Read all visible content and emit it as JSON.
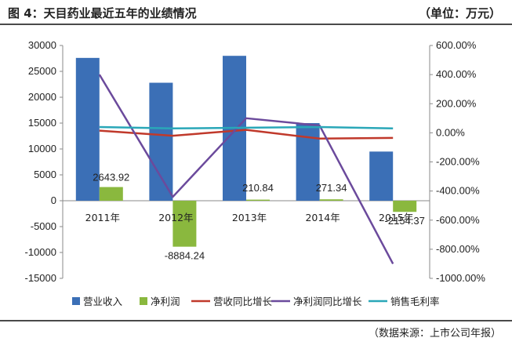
{
  "header": {
    "title": "图 4：天目药业最近五年的业绩情况",
    "unit": "（单位：万元）"
  },
  "footer": {
    "source": "（数据来源：上市公司年报）"
  },
  "chart_data": {
    "type": "bar",
    "categories": [
      "2011年",
      "2012年",
      "2013年",
      "2014年",
      "2015年"
    ],
    "series": [
      {
        "name": "营业收入",
        "type": "bar",
        "axis": "left",
        "color": "#3b6fb6",
        "values": [
          27600,
          22800,
          28000,
          15000,
          9500
        ]
      },
      {
        "name": "净利润",
        "type": "bar",
        "axis": "left",
        "color": "#8ab83e",
        "values": [
          2643.92,
          -8884.24,
          210.84,
          271.34,
          -2154.37
        ]
      },
      {
        "name": "营收同比增长",
        "type": "line",
        "axis": "right",
        "color": "#c0392b",
        "values": [
          15,
          -20,
          20,
          -40,
          -35
        ]
      },
      {
        "name": "净利润同比增长",
        "type": "line",
        "axis": "right",
        "color": "#6b4a9c",
        "values": [
          400,
          -440,
          100,
          50,
          -900
        ]
      },
      {
        "name": "销售毛利率",
        "type": "line",
        "axis": "right",
        "color": "#2aa7b8",
        "values": [
          40,
          30,
          35,
          40,
          30
        ]
      }
    ],
    "data_labels": [
      "2643.92",
      "-8884.24",
      "210.84",
      "271.34",
      "-2154.37"
    ],
    "y_left": {
      "ylim": [
        -15000,
        30000
      ],
      "ticks": [
        "30000",
        "25000",
        "20000",
        "15000",
        "10000",
        "5000",
        "0",
        "-5000",
        "-10000",
        "-15000"
      ]
    },
    "y_right": {
      "ylim": [
        -1000,
        600
      ],
      "ticks": [
        "600.00%",
        "400.00%",
        "200.00%",
        "0.00%",
        "-200.00%",
        "-400.00%",
        "-600.00%",
        "-800.00%",
        "-1000.00%"
      ]
    },
    "legend_position": "bottom",
    "grid": false
  }
}
